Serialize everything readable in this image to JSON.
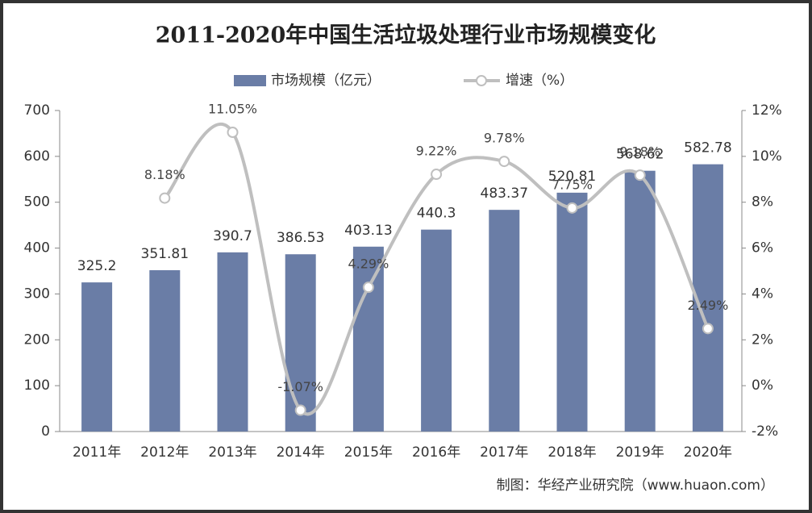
{
  "chart_data": {
    "type": "bar_line",
    "title": "2011-2020年中国生活垃圾处理行业市场规模变化",
    "categories": [
      "2011年",
      "2012年",
      "2013年",
      "2014年",
      "2015年",
      "2016年",
      "2017年",
      "2018年",
      "2019年",
      "2020年"
    ],
    "series": [
      {
        "name": "市场规模（亿元）",
        "color": "#6a7da6",
        "type": "bar",
        "values": [
          325.2,
          351.81,
          390.7,
          386.53,
          403.13,
          440.3,
          483.37,
          520.81,
          568.62,
          582.78
        ]
      },
      {
        "name": "增速（%）",
        "color": "#bfbfbf",
        "type": "line",
        "axis": "y2",
        "values": [
          null,
          8.18,
          11.05,
          -1.07,
          4.29,
          9.22,
          9.78,
          7.75,
          9.18,
          2.49
        ],
        "value_labels": [
          null,
          "8.18%",
          "11.05%",
          "-1.07%",
          "4.29%",
          "9.22%",
          "9.78%",
          "7.75%",
          "9.18%",
          "2.49%"
        ]
      }
    ],
    "ylim": [
      0,
      700
    ],
    "yticks": [
      0,
      100,
      200,
      300,
      400,
      500,
      600,
      700
    ],
    "y2lim": [
      -2,
      12
    ],
    "y2ticks": [
      {
        "value": -2,
        "label": "-2%"
      },
      {
        "value": 0,
        "label": "0%"
      },
      {
        "value": 2,
        "label": "2%"
      },
      {
        "value": 4,
        "label": "4%"
      },
      {
        "value": 6,
        "label": "6%"
      },
      {
        "value": 8,
        "label": "8%"
      },
      {
        "value": 10,
        "label": "10%"
      },
      {
        "value": 12,
        "label": "12%"
      }
    ],
    "legend": "top",
    "source": "制图：华经产业研究院（www.huaon.com）"
  }
}
